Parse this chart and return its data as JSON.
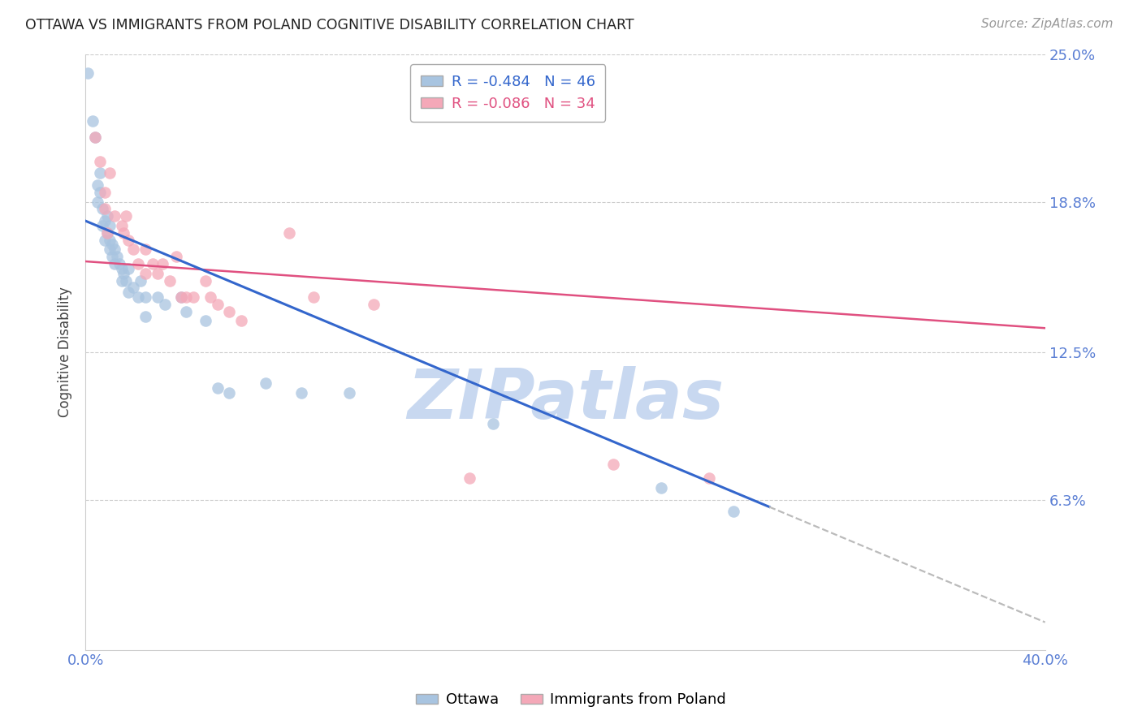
{
  "title": "OTTAWA VS IMMIGRANTS FROM POLAND COGNITIVE DISABILITY CORRELATION CHART",
  "source": "Source: ZipAtlas.com",
  "ylabel": "Cognitive Disability",
  "xlim": [
    0.0,
    0.4
  ],
  "ylim": [
    0.0,
    0.25
  ],
  "yticks": [
    0.0,
    0.063,
    0.125,
    0.188,
    0.25
  ],
  "ytick_labels": [
    "",
    "6.3%",
    "12.5%",
    "18.8%",
    "25.0%"
  ],
  "xticks": [
    0.0,
    0.1,
    0.2,
    0.3,
    0.4
  ],
  "xtick_labels": [
    "0.0%",
    "",
    "",
    "",
    "40.0%"
  ],
  "legend_R1": "R = -0.484",
  "legend_N1": "N = 46",
  "legend_R2": "R = -0.086",
  "legend_N2": "N = 34",
  "legend_label1": "Ottawa",
  "legend_label2": "Immigrants from Poland",
  "color_ottawa": "#a8c4e0",
  "color_poland": "#f4a8b8",
  "color_line_ottawa": "#3366cc",
  "color_line_poland": "#e05080",
  "color_trendline_ext": "#bbbbbb",
  "color_axis_labels": "#5b7fd4",
  "background_color": "#ffffff",
  "ottawa_x": [
    0.001,
    0.003,
    0.004,
    0.005,
    0.005,
    0.006,
    0.006,
    0.007,
    0.007,
    0.008,
    0.008,
    0.009,
    0.009,
    0.01,
    0.01,
    0.01,
    0.011,
    0.011,
    0.012,
    0.012,
    0.013,
    0.014,
    0.015,
    0.015,
    0.016,
    0.017,
    0.018,
    0.018,
    0.02,
    0.022,
    0.023,
    0.025,
    0.025,
    0.03,
    0.033,
    0.04,
    0.042,
    0.05,
    0.055,
    0.06,
    0.075,
    0.09,
    0.11,
    0.17,
    0.24,
    0.27
  ],
  "ottawa_y": [
    0.242,
    0.222,
    0.215,
    0.195,
    0.188,
    0.2,
    0.192,
    0.185,
    0.178,
    0.18,
    0.172,
    0.175,
    0.182,
    0.178,
    0.168,
    0.172,
    0.17,
    0.165,
    0.168,
    0.162,
    0.165,
    0.162,
    0.16,
    0.155,
    0.158,
    0.155,
    0.16,
    0.15,
    0.152,
    0.148,
    0.155,
    0.148,
    0.14,
    0.148,
    0.145,
    0.148,
    0.142,
    0.138,
    0.11,
    0.108,
    0.112,
    0.108,
    0.108,
    0.095,
    0.068,
    0.058
  ],
  "poland_x": [
    0.004,
    0.006,
    0.008,
    0.008,
    0.009,
    0.01,
    0.012,
    0.015,
    0.016,
    0.017,
    0.018,
    0.02,
    0.022,
    0.025,
    0.025,
    0.028,
    0.03,
    0.032,
    0.035,
    0.038,
    0.04,
    0.042,
    0.045,
    0.05,
    0.052,
    0.055,
    0.06,
    0.065,
    0.085,
    0.095,
    0.12,
    0.16,
    0.22,
    0.26
  ],
  "poland_y": [
    0.215,
    0.205,
    0.185,
    0.192,
    0.175,
    0.2,
    0.182,
    0.178,
    0.175,
    0.182,
    0.172,
    0.168,
    0.162,
    0.168,
    0.158,
    0.162,
    0.158,
    0.162,
    0.155,
    0.165,
    0.148,
    0.148,
    0.148,
    0.155,
    0.148,
    0.145,
    0.142,
    0.138,
    0.175,
    0.148,
    0.145,
    0.072,
    0.078,
    0.072
  ],
  "watermark": "ZIPatlas",
  "watermark_color": "#c8d8f0",
  "ottawa_trend_x_end": 0.285,
  "ottawa_trend_start_y": 0.18,
  "ottawa_trend_end_y": 0.06,
  "poland_trend_start_y": 0.163,
  "poland_trend_end_y": 0.135
}
